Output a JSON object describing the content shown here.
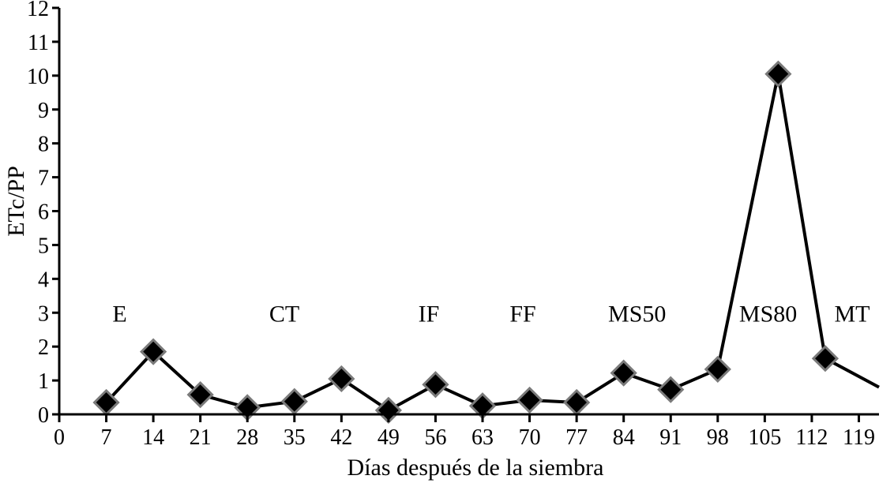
{
  "chart_data": {
    "type": "line",
    "xlabel": "Días después de la siembra",
    "ylabel": "ETc/PP",
    "xlim": [
      0,
      122
    ],
    "ylim": [
      0,
      12
    ],
    "x_ticks": [
      0,
      7,
      14,
      21,
      28,
      35,
      42,
      49,
      56,
      63,
      70,
      77,
      84,
      91,
      98,
      105,
      112,
      119
    ],
    "y_ticks": [
      0,
      1,
      2,
      3,
      4,
      5,
      6,
      7,
      8,
      9,
      10,
      11,
      12
    ],
    "grid": false,
    "series": [
      {
        "line_color": "#000000",
        "marker": "diamond",
        "marker_color": "#000000",
        "x": [
          7,
          14,
          21,
          28,
          35,
          42,
          49,
          56,
          63,
          70,
          77,
          84,
          91,
          98,
          107,
          114,
          122
        ],
        "y": [
          0.35,
          1.85,
          0.58,
          0.2,
          0.38,
          1.05,
          0.12,
          0.88,
          0.25,
          0.42,
          0.35,
          1.22,
          0.73,
          1.33,
          10.05,
          1.65,
          0.8
        ]
      }
    ],
    "annotations": [
      {
        "text": "E",
        "x": 9,
        "y": 3
      },
      {
        "text": "CT",
        "x": 33.5,
        "y": 3
      },
      {
        "text": "IF",
        "x": 55,
        "y": 3
      },
      {
        "text": "FF",
        "x": 69,
        "y": 3
      },
      {
        "text": "MS50",
        "x": 86,
        "y": 3
      },
      {
        "text": "MS80",
        "x": 105.5,
        "y": 3
      },
      {
        "text": "MT",
        "x": 118,
        "y": 3
      }
    ]
  }
}
